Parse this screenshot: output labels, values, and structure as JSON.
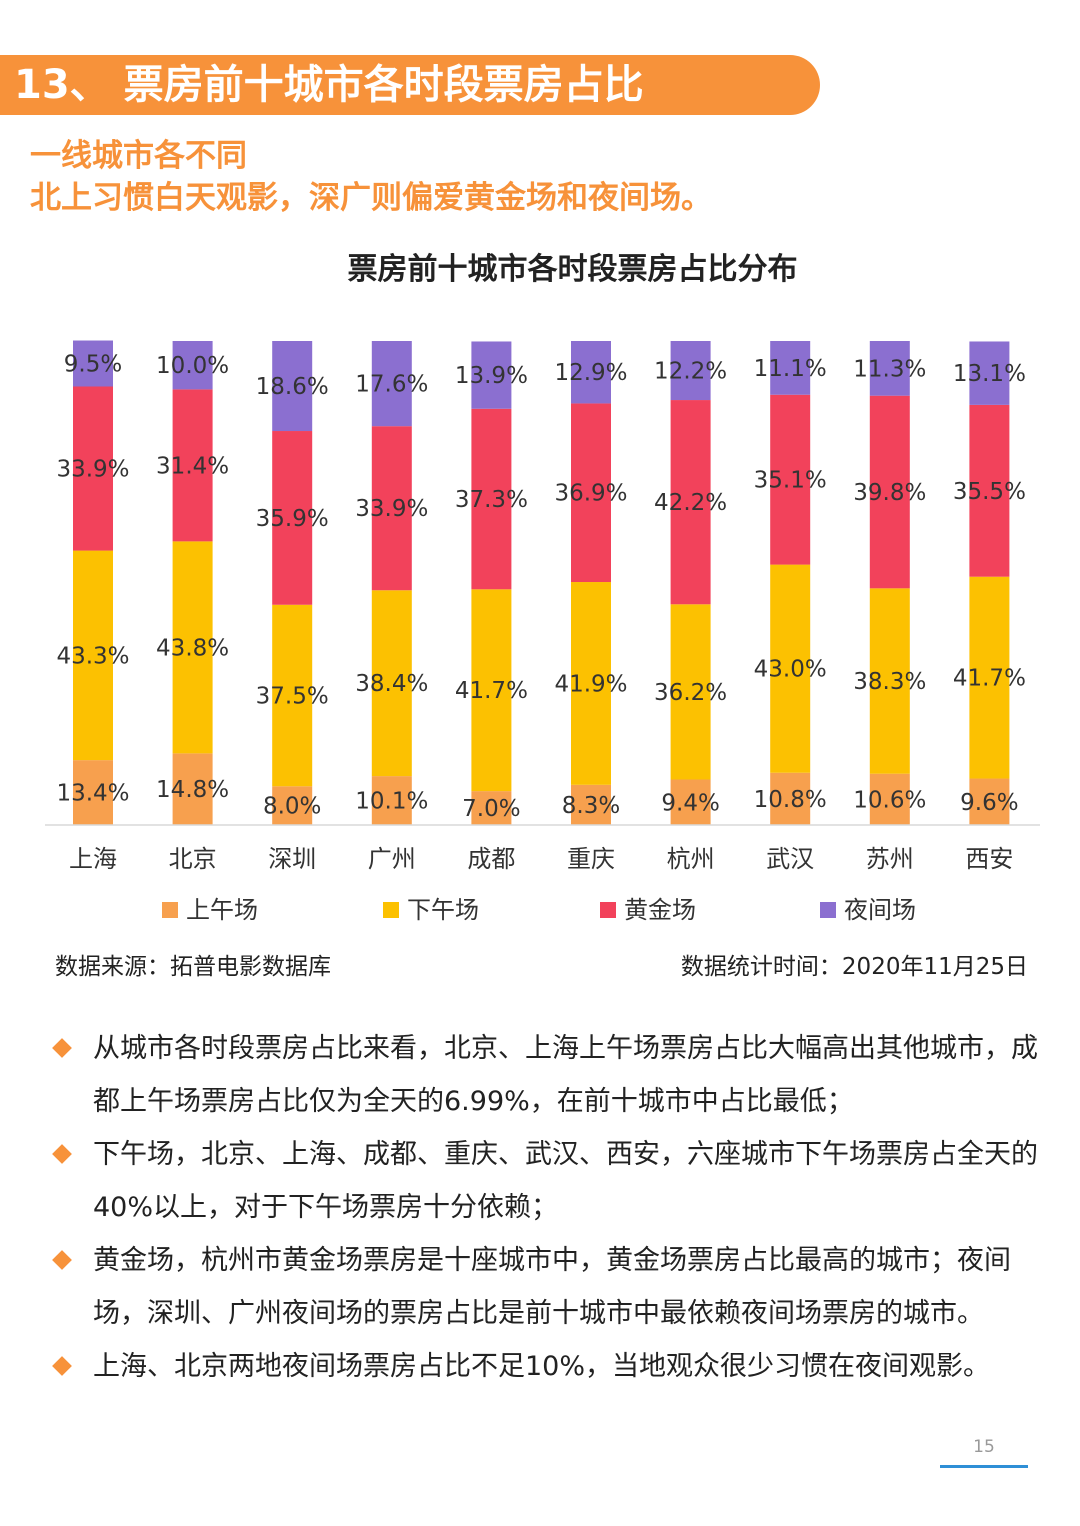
{
  "header": {
    "title": "13、 票房前十城市各时段票房占比"
  },
  "subtitle": {
    "line1": "一线城市各不同",
    "line2": "北上习惯白天观影，深广则偏爱黄金场和夜间场。"
  },
  "chart_data": {
    "type": "bar",
    "stacked": true,
    "percent": true,
    "title": "票房前十城市各时段票房占比分布",
    "categories": [
      "上海",
      "北京",
      "深圳",
      "广州",
      "成都",
      "重庆",
      "杭州",
      "武汉",
      "苏州",
      "西安"
    ],
    "series": [
      {
        "name": "上午场",
        "color": "#f7a04e",
        "values": [
          13.4,
          14.8,
          8.0,
          10.1,
          7.0,
          8.3,
          9.4,
          10.8,
          10.6,
          9.6
        ]
      },
      {
        "name": "下午场",
        "color": "#fcc101",
        "values": [
          43.3,
          43.8,
          37.5,
          38.4,
          41.7,
          41.9,
          36.2,
          43.0,
          38.3,
          41.7
        ]
      },
      {
        "name": "黄金场",
        "color": "#f2425b",
        "values": [
          33.9,
          31.4,
          35.9,
          33.9,
          37.3,
          36.9,
          42.2,
          35.1,
          39.8,
          35.5
        ]
      },
      {
        "name": "夜间场",
        "color": "#8b6fd0",
        "values": [
          9.5,
          10.0,
          18.6,
          17.6,
          13.9,
          12.9,
          12.2,
          11.1,
          11.3,
          13.1
        ]
      }
    ],
    "ylim": [
      0,
      100
    ],
    "legend": "bottom",
    "grid": false
  },
  "footer": {
    "source": "数据来源：拓普电影数据库",
    "stat_time": "数据统计时间：2020年11月25日"
  },
  "bullets": [
    "从城市各时段票房占比来看，北京、上海上午场票房占比大幅高出其他城市，成都上午场票房占比仅为全天的6.99%，在前十城市中占比最低；",
    "下午场，北京、上海、成都、重庆、武汉、西安，六座城市下午场票房占全天的40%以上，对于下午场票房十分依赖；",
    "黄金场，杭州市黄金场票房是十座城市中，黄金场票房占比最高的城市；夜间场，深圳、广州夜间场的票房占比是前十城市中最依赖夜间场票房的城市。",
    "上海、北京两地夜间场票房占比不足10%，当地观众很少习惯在夜间观影。"
  ],
  "page": {
    "number": "15"
  },
  "colors": {
    "accent": "#f7923a",
    "page_line": "#2f8fd6"
  }
}
